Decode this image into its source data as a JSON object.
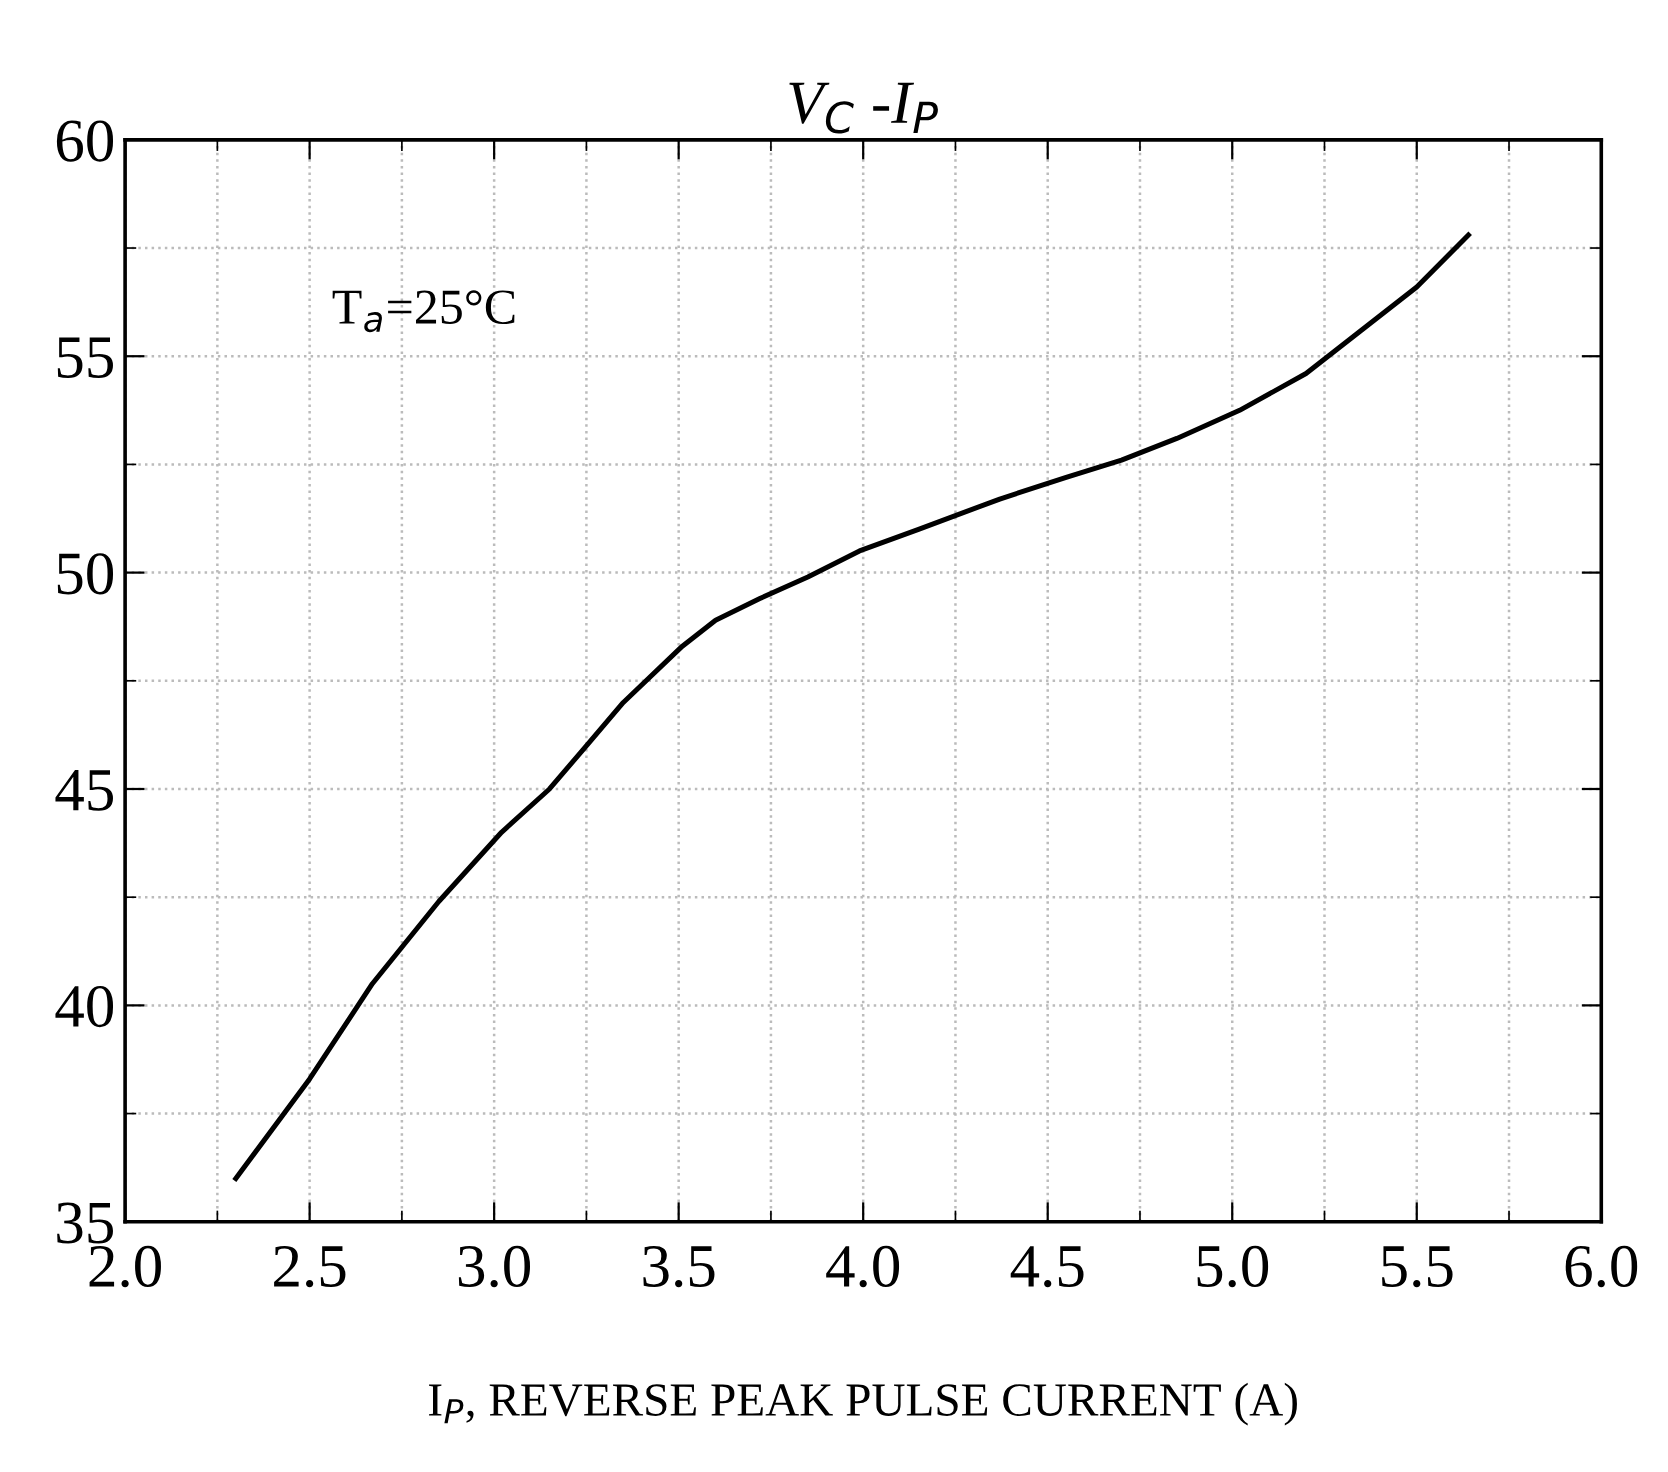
{
  "chart_data": {
    "type": "line",
    "title": "V$_{C}$ -I$_{P}$",
    "xlabel": "I$_{P}$, REVERSE PEAK PULSE CURRENT (A)",
    "annotations": [
      {
        "text": "T$_{a}$=25°C"
      }
    ],
    "series": [
      {
        "color": "#000000",
        "x": [
          2.3,
          2.5,
          2.67,
          2.85,
          3.02,
          3.15,
          3.24,
          3.35,
          3.51,
          3.6,
          3.72,
          3.85,
          3.99,
          4.15,
          4.37,
          4.55,
          4.7,
          4.85,
          5.02,
          5.2,
          5.35,
          5.5,
          5.64
        ],
        "values": [
          36.0,
          38.3,
          40.5,
          42.4,
          44.0,
          45.0,
          45.9,
          47.0,
          48.3,
          48.9,
          49.4,
          49.9,
          50.5,
          51.0,
          51.7,
          52.2,
          52.6,
          53.1,
          53.75,
          54.6,
          55.6,
          56.6,
          57.8
        ]
      }
    ],
    "xlim": [
      2.0,
      6.0
    ],
    "ylim": [
      35,
      60
    ],
    "xticks": [
      {
        "value": 2.0,
        "label": "2.0"
      },
      {
        "value": 2.5,
        "label": "2.5"
      },
      {
        "value": 3.0,
        "label": "3.0"
      },
      {
        "value": 3.5,
        "label": "3.5"
      },
      {
        "value": 4.0,
        "label": "4.0"
      },
      {
        "value": 4.5,
        "label": "4.5"
      },
      {
        "value": 5.0,
        "label": "5.0"
      },
      {
        "value": 5.5,
        "label": "5.5"
      },
      {
        "value": 6.0,
        "label": "6.0"
      }
    ],
    "yticks": [
      35,
      40,
      45,
      50,
      55,
      60
    ],
    "grid": true,
    "legend": false,
    "marker": "none",
    "line_style": "solid"
  }
}
